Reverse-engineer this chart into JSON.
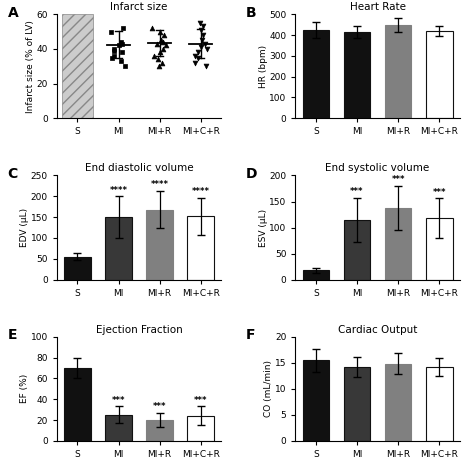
{
  "panel_A": {
    "title": "Infarct size",
    "ylabel": "Infarct size (% of LV)",
    "ylim": [
      0,
      60
    ],
    "yticks": [
      0,
      20,
      40,
      60
    ],
    "groups": [
      "S",
      "MI",
      "MI+R",
      "MI+C+R"
    ],
    "means": [
      null,
      42.5,
      43.5,
      43.0
    ],
    "errors": [
      null,
      8.0,
      7.5,
      8.5
    ],
    "scatter_MI": [
      52,
      50,
      44,
      43,
      42,
      40,
      39,
      38,
      36,
      35,
      33,
      30
    ],
    "scatter_MIR": [
      52,
      50,
      48,
      45,
      44,
      43,
      42,
      40,
      38,
      36,
      34,
      32,
      30
    ],
    "scatter_MICR": [
      55,
      53,
      51,
      48,
      45,
      43,
      41,
      40,
      38,
      36,
      35,
      32,
      30
    ],
    "label_letter": "A"
  },
  "panel_B": {
    "title": "Heart Rate",
    "ylabel": "HR (bpm)",
    "ylim": [
      0,
      500
    ],
    "yticks": [
      0,
      100,
      200,
      300,
      400,
      500
    ],
    "groups": [
      "S",
      "MI",
      "MI+R",
      "MI+C+R"
    ],
    "means": [
      425,
      415,
      448,
      420
    ],
    "errors": [
      40,
      30,
      35,
      25
    ],
    "colors": [
      "#111111",
      "#111111",
      "#808080",
      "#ffffff"
    ],
    "edgecolors": [
      "#111111",
      "#111111",
      "#808080",
      "#111111"
    ],
    "sig_labels": [
      "",
      "",
      "",
      ""
    ],
    "label_letter": "B"
  },
  "panel_C": {
    "title": "End diastolic volume",
    "ylabel": "EDV (μL)",
    "ylim": [
      0,
      250
    ],
    "yticks": [
      0,
      50,
      100,
      150,
      200,
      250
    ],
    "groups": [
      "S",
      "MI",
      "MI+R",
      "MI+C+R"
    ],
    "means": [
      55,
      150,
      168,
      152
    ],
    "errors": [
      8,
      50,
      45,
      45
    ],
    "colors": [
      "#111111",
      "#383838",
      "#808080",
      "#ffffff"
    ],
    "edgecolors": [
      "#111111",
      "#111111",
      "#808080",
      "#111111"
    ],
    "sig_labels": [
      "",
      "****",
      "****",
      "****"
    ],
    "label_letter": "C"
  },
  "panel_D": {
    "title": "End systolic volume",
    "ylabel": "ESV (μL)",
    "ylim": [
      0,
      200
    ],
    "yticks": [
      0,
      50,
      100,
      150,
      200
    ],
    "groups": [
      "S",
      "MI",
      "MI+R",
      "MI+C+R"
    ],
    "means": [
      18,
      115,
      138,
      118
    ],
    "errors": [
      5,
      42,
      42,
      38
    ],
    "colors": [
      "#111111",
      "#383838",
      "#808080",
      "#ffffff"
    ],
    "edgecolors": [
      "#111111",
      "#111111",
      "#808080",
      "#111111"
    ],
    "sig_labels": [
      "",
      "***",
      "***",
      "***"
    ],
    "label_letter": "D"
  },
  "panel_E": {
    "title": "Ejection Fraction",
    "ylabel": "EF (%)",
    "ylim": [
      0,
      100
    ],
    "yticks": [
      0,
      20,
      40,
      60,
      80,
      100
    ],
    "groups": [
      "S",
      "MI",
      "MI+R",
      "MI+C+R"
    ],
    "means": [
      70,
      25,
      20,
      24
    ],
    "errors": [
      10,
      8,
      7,
      9
    ],
    "colors": [
      "#111111",
      "#383838",
      "#808080",
      "#ffffff"
    ],
    "edgecolors": [
      "#111111",
      "#111111",
      "#808080",
      "#111111"
    ],
    "sig_labels": [
      "",
      "***",
      "***",
      "***"
    ],
    "label_letter": "E"
  },
  "panel_F": {
    "title": "Cardiac Output",
    "ylabel": "CO (mL/min)",
    "ylim": [
      0,
      20
    ],
    "yticks": [
      0,
      5,
      10,
      15,
      20
    ],
    "groups": [
      "S",
      "MI",
      "MI+R",
      "MI+C+R"
    ],
    "means": [
      15.5,
      14.2,
      14.8,
      14.2
    ],
    "errors": [
      2.2,
      2.0,
      2.0,
      1.8
    ],
    "colors": [
      "#111111",
      "#383838",
      "#808080",
      "#ffffff"
    ],
    "edgecolors": [
      "#111111",
      "#111111",
      "#808080",
      "#111111"
    ],
    "sig_labels": [
      "",
      "",
      "",
      ""
    ],
    "label_letter": "F"
  },
  "fig_width": 4.74,
  "fig_height": 4.74,
  "dpi": 100
}
